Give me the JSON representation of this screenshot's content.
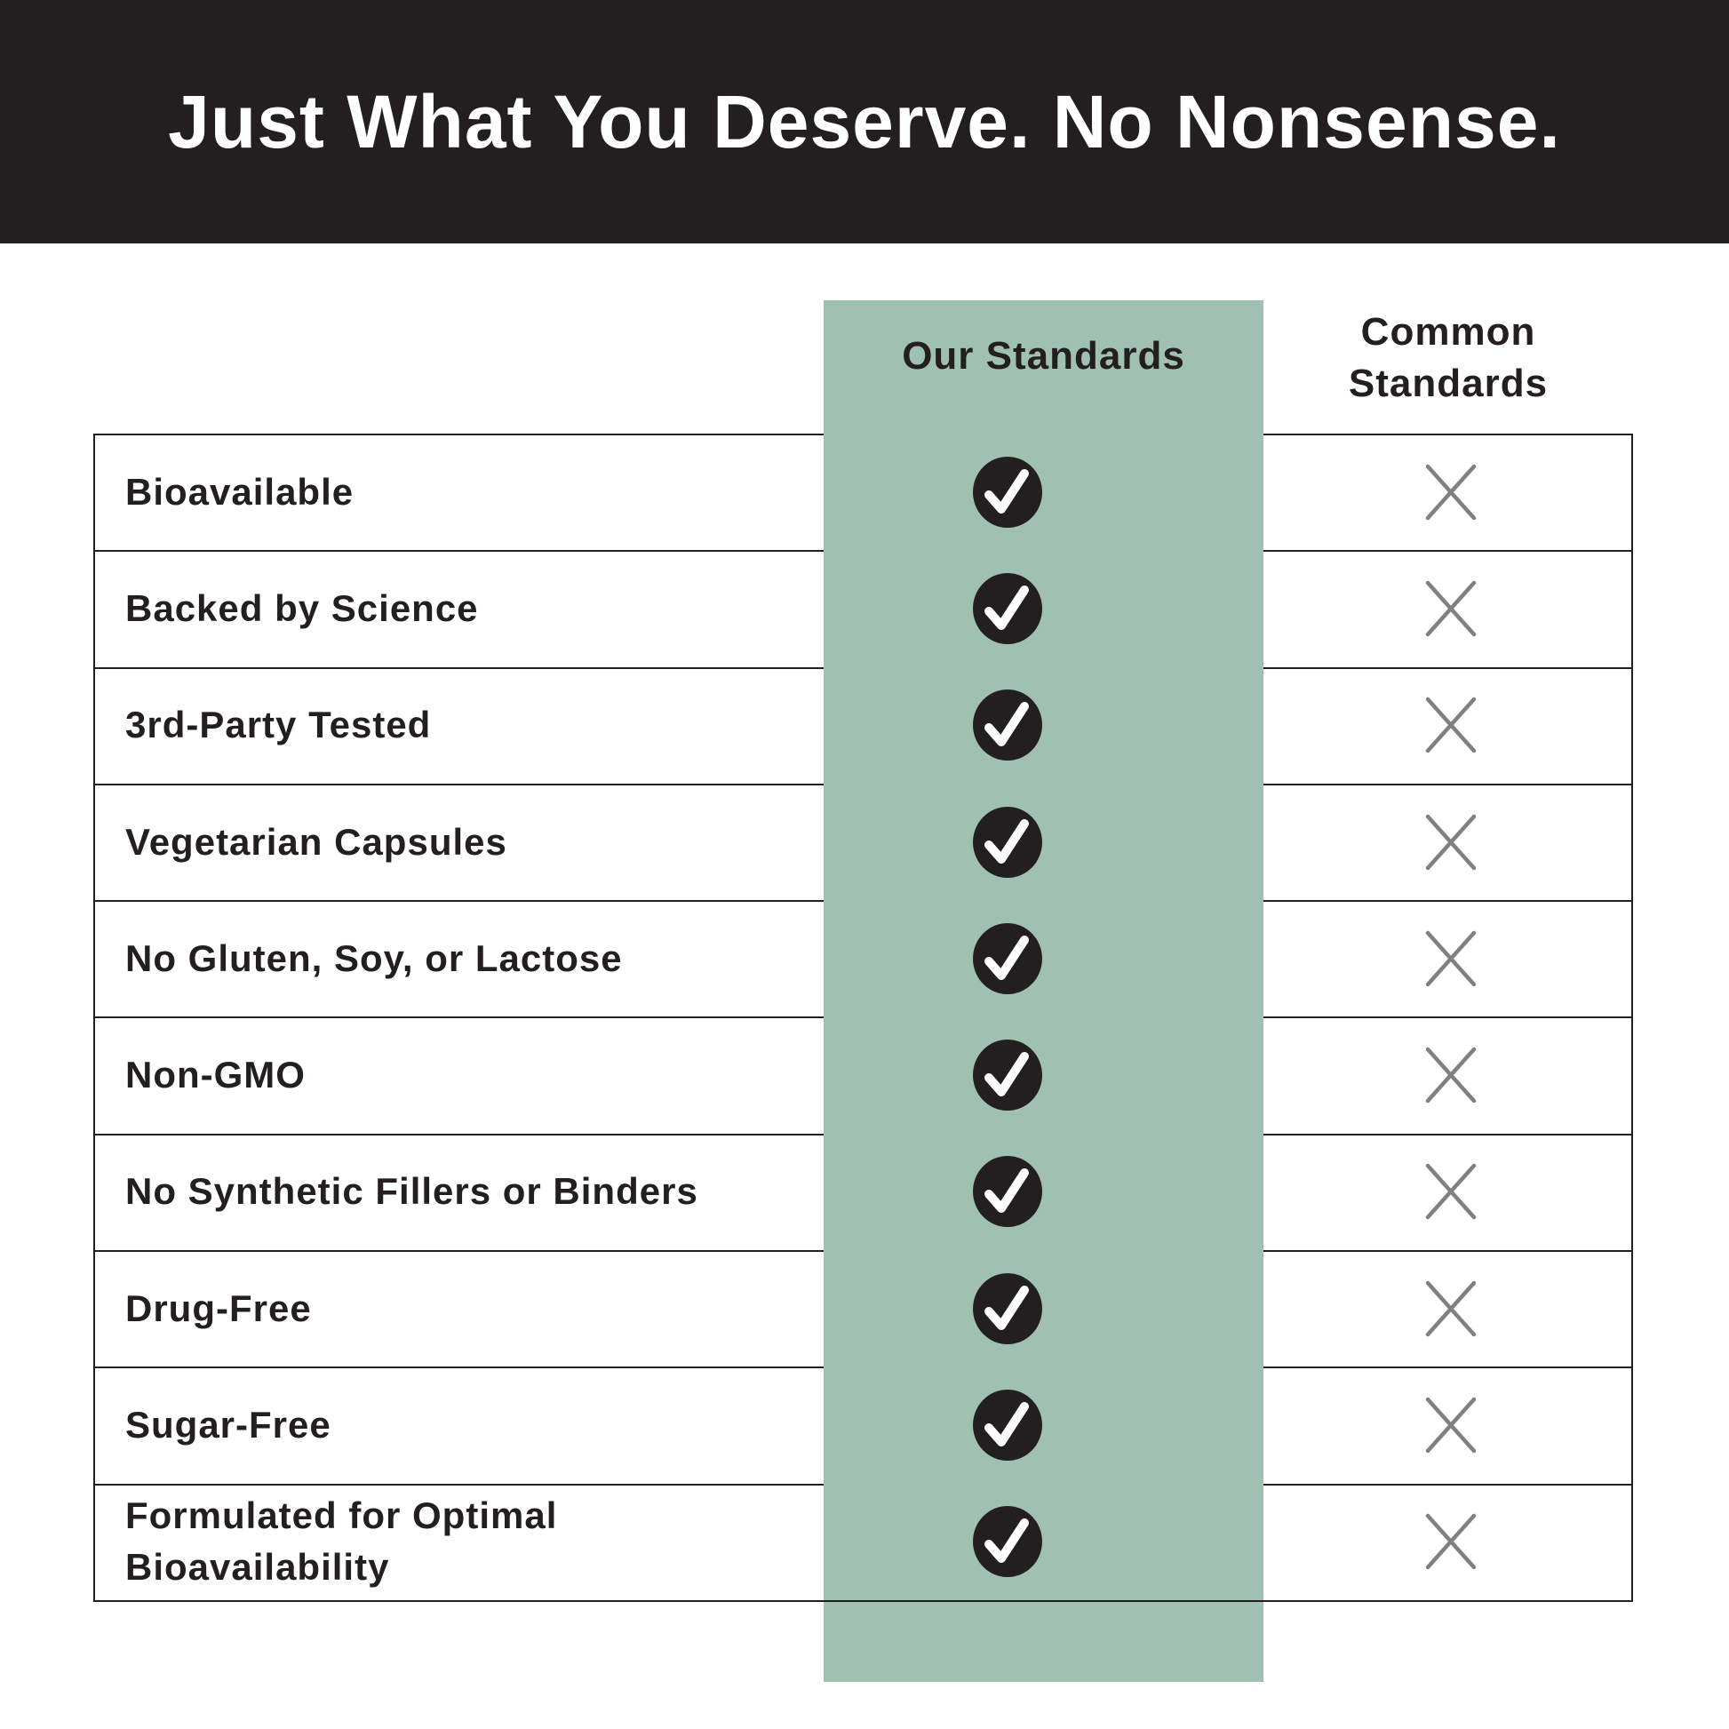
{
  "title": "Just What You Deserve. No Nonsense.",
  "columns": {
    "ours": "Our Standards",
    "common_line1": "Common",
    "common_line2": "Standards"
  },
  "colors": {
    "header_bg": "#231f20",
    "accent_green": "#a0c1b1",
    "cross_gray": "#808080"
  },
  "rows": [
    {
      "label": "Bioavailable",
      "ours": "check-icon",
      "common": "x-icon"
    },
    {
      "label": "Backed by Science",
      "ours": "check-icon",
      "common": "x-icon"
    },
    {
      "label": "3rd-Party Tested",
      "ours": "check-icon",
      "common": "x-icon"
    },
    {
      "label": "Vegetarian Capsules",
      "ours": "check-icon",
      "common": "x-icon"
    },
    {
      "label": "No Gluten, Soy, or Lactose",
      "ours": "check-icon",
      "common": "x-icon"
    },
    {
      "label": "Non-GMO",
      "ours": "check-icon",
      "common": "x-icon"
    },
    {
      "label": "No Synthetic Fillers or Binders",
      "ours": "check-icon",
      "common": "x-icon"
    },
    {
      "label": "Drug-Free",
      "ours": "check-icon",
      "common": "x-icon"
    },
    {
      "label": "Sugar-Free",
      "ours": "check-icon",
      "common": "x-icon"
    },
    {
      "label": "Formulated for Optimal Bioavailability",
      "ours": "check-icon",
      "common": "x-icon"
    }
  ]
}
